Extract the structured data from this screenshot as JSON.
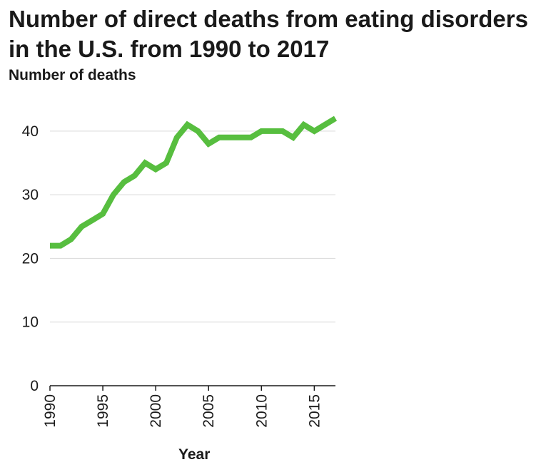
{
  "chart_data": {
    "type": "line",
    "title": "Number of direct deaths from eating disorders in the U.S. from 1990 to 2017",
    "xlabel": "Year",
    "ylabel": "Number of deaths",
    "xlim": [
      1990,
      2017
    ],
    "ylim": [
      0,
      42
    ],
    "xticks": [
      1990,
      1995,
      2000,
      2005,
      2010,
      2015
    ],
    "yticks": [
      0,
      10,
      20,
      30,
      40
    ],
    "grid": "horizontal",
    "line_color": "#57be3f",
    "x": [
      1990,
      1991,
      1992,
      1993,
      1994,
      1995,
      1996,
      1997,
      1998,
      1999,
      2000,
      2001,
      2002,
      2003,
      2004,
      2005,
      2006,
      2007,
      2008,
      2009,
      2010,
      2011,
      2012,
      2013,
      2014,
      2015,
      2016,
      2017
    ],
    "values": [
      22,
      22,
      23,
      25,
      26,
      27,
      30,
      32,
      33,
      35,
      34,
      35,
      39,
      41,
      40,
      38,
      39,
      39,
      39,
      39,
      40,
      40,
      40,
      39,
      41,
      40,
      41,
      42
    ]
  }
}
